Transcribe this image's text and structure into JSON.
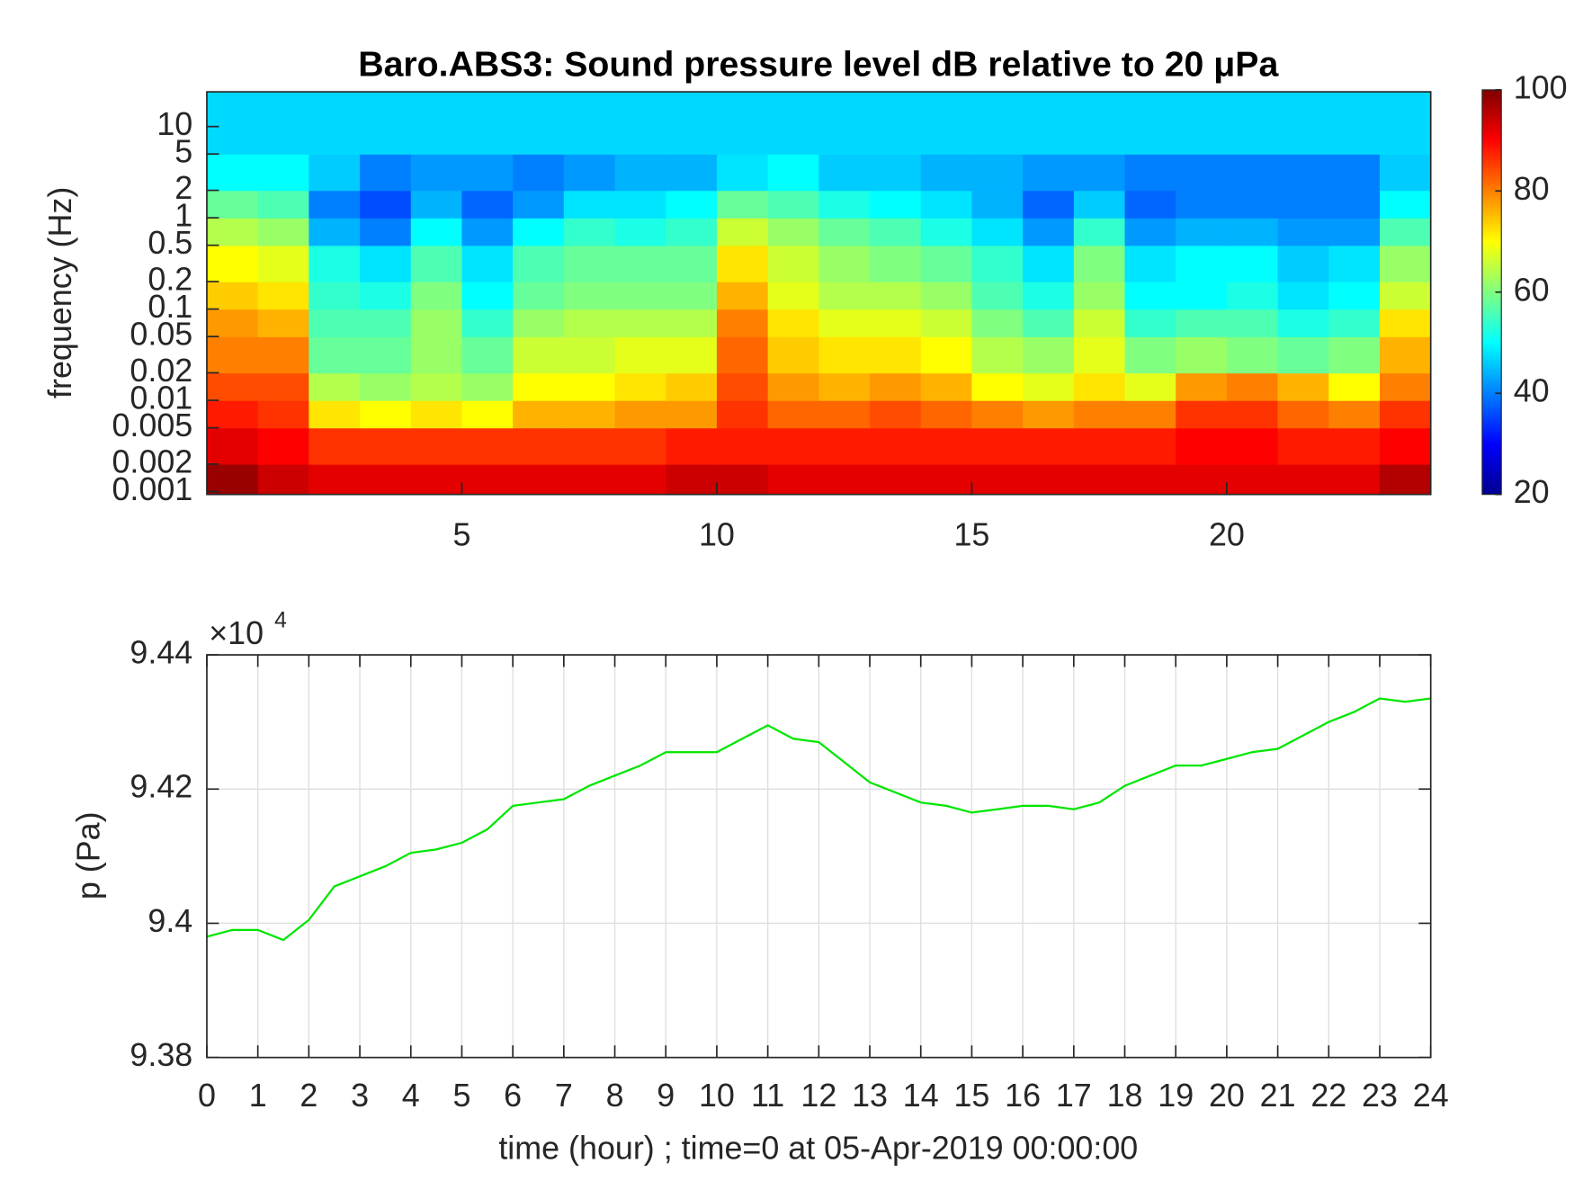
{
  "chart_data": [
    {
      "type": "heatmap",
      "title": "Baro.ABS3: Sound pressure level dB relative to 20 μPa",
      "y_label": "frequency (Hz)",
      "xlim": [
        0,
        24
      ],
      "xticks": [
        5,
        10,
        15,
        20
      ],
      "ylim": [
        0.00093,
        24
      ],
      "y_log": true,
      "yticks": [
        0.001,
        0.002,
        0.005,
        0.01,
        0.02,
        0.05,
        0.1,
        0.2,
        0.5,
        1,
        2,
        5,
        10
      ],
      "x_bins": [
        0,
        1,
        2,
        3,
        4,
        5,
        6,
        7,
        8,
        9,
        10,
        11,
        12,
        13,
        14,
        15,
        16,
        17,
        18,
        19,
        20,
        21,
        22,
        23,
        24
      ],
      "y_bins": [
        0.00093,
        0.002,
        0.005,
        0.01,
        0.02,
        0.05,
        0.1,
        0.2,
        0.5,
        1,
        2,
        5,
        24
      ],
      "colormap": "jet",
      "clim": [
        20,
        100
      ],
      "cticks": [
        20,
        40,
        60,
        80,
        100
      ],
      "z": [
        [
          98,
          94,
          92,
          92,
          92,
          92,
          92,
          92,
          92,
          94,
          94,
          92,
          92,
          92,
          92,
          92,
          92,
          92,
          92,
          92,
          92,
          92,
          92,
          96
        ],
        [
          92,
          90,
          86,
          86,
          86,
          86,
          86,
          86,
          86,
          88,
          88,
          88,
          88,
          88,
          88,
          88,
          88,
          88,
          88,
          90,
          90,
          88,
          88,
          90
        ],
        [
          88,
          86,
          72,
          70,
          72,
          70,
          76,
          76,
          78,
          78,
          86,
          82,
          82,
          84,
          82,
          80,
          78,
          80,
          80,
          86,
          86,
          82,
          80,
          86
        ],
        [
          84,
          84,
          64,
          62,
          64,
          62,
          70,
          70,
          72,
          74,
          84,
          78,
          76,
          78,
          76,
          70,
          68,
          72,
          68,
          78,
          80,
          76,
          70,
          80
        ],
        [
          80,
          80,
          58,
          58,
          62,
          58,
          66,
          66,
          68,
          68,
          82,
          74,
          72,
          72,
          70,
          64,
          62,
          68,
          60,
          62,
          60,
          58,
          60,
          76
        ],
        [
          78,
          76,
          56,
          56,
          62,
          54,
          62,
          64,
          64,
          64,
          80,
          72,
          68,
          68,
          66,
          60,
          56,
          66,
          54,
          56,
          56,
          52,
          54,
          72
        ],
        [
          74,
          72,
          54,
          52,
          60,
          50,
          58,
          60,
          60,
          60,
          76,
          68,
          64,
          64,
          62,
          56,
          52,
          62,
          50,
          50,
          52,
          48,
          50,
          66
        ],
        [
          70,
          68,
          52,
          48,
          56,
          48,
          56,
          58,
          58,
          58,
          72,
          66,
          62,
          60,
          58,
          54,
          48,
          60,
          48,
          50,
          50,
          46,
          48,
          62
        ],
        [
          64,
          62,
          44,
          40,
          50,
          42,
          50,
          54,
          52,
          54,
          66,
          62,
          58,
          56,
          52,
          48,
          42,
          54,
          42,
          44,
          44,
          42,
          42,
          56
        ],
        [
          58,
          56,
          40,
          36,
          44,
          38,
          42,
          48,
          48,
          50,
          58,
          56,
          52,
          50,
          48,
          44,
          38,
          46,
          38,
          40,
          40,
          40,
          40,
          50
        ],
        [
          50,
          50,
          46,
          40,
          42,
          42,
          40,
          42,
          44,
          44,
          48,
          50,
          46,
          46,
          44,
          44,
          42,
          42,
          40,
          40,
          40,
          40,
          40,
          46
        ],
        [
          47,
          47,
          47,
          47,
          47,
          47,
          47,
          47,
          47,
          47,
          47,
          47,
          47,
          47,
          47,
          47,
          47,
          47,
          47,
          47,
          47,
          47,
          47,
          47
        ]
      ]
    },
    {
      "type": "line",
      "x_label": "time (hour) ; time=0 at 05-Apr-2019 00:00:00",
      "y_label": "p (Pa)",
      "y_exponent": {
        "base": "×10",
        "power": "4"
      },
      "xlim": [
        0,
        24
      ],
      "xticks": [
        0,
        1,
        2,
        3,
        4,
        5,
        6,
        7,
        8,
        9,
        10,
        11,
        12,
        13,
        14,
        15,
        16,
        17,
        18,
        19,
        20,
        21,
        22,
        23,
        24
      ],
      "ylim": [
        93800,
        94400
      ],
      "yticks": [
        {
          "value": 93800,
          "label": "9.38"
        },
        {
          "value": 94000,
          "label": "9.4"
        },
        {
          "value": 94200,
          "label": "9.42"
        },
        {
          "value": 94400,
          "label": "9.44"
        }
      ],
      "grid": true,
      "series": [
        {
          "color": "#00e600",
          "x": [
            0,
            0.5,
            1,
            1.5,
            2,
            2.5,
            3,
            3.5,
            4,
            4.5,
            5,
            5.5,
            6,
            6.5,
            7,
            7.5,
            8,
            8.5,
            9,
            9.5,
            10,
            10.5,
            11,
            11.5,
            12,
            12.5,
            13,
            13.5,
            14,
            14.5,
            15,
            15.5,
            16,
            16.5,
            17,
            17.5,
            18,
            18.5,
            19,
            19.5,
            20,
            20.5,
            21,
            21.5,
            22,
            22.5,
            23,
            23.5,
            24
          ],
          "values": [
            93980,
            93990,
            93990,
            93975,
            94005,
            94055,
            94070,
            94085,
            94105,
            94110,
            94120,
            94140,
            94175,
            94180,
            94185,
            94205,
            94220,
            94235,
            94255,
            94255,
            94255,
            94275,
            94295,
            94275,
            94270,
            94240,
            94210,
            94195,
            94180,
            94175,
            94165,
            94170,
            94175,
            94175,
            94170,
            94180,
            94205,
            94220,
            94235,
            94235,
            94245,
            94255,
            94260,
            94280,
            94300,
            94315,
            94335,
            94330,
            94335
          ]
        }
      ]
    }
  ]
}
